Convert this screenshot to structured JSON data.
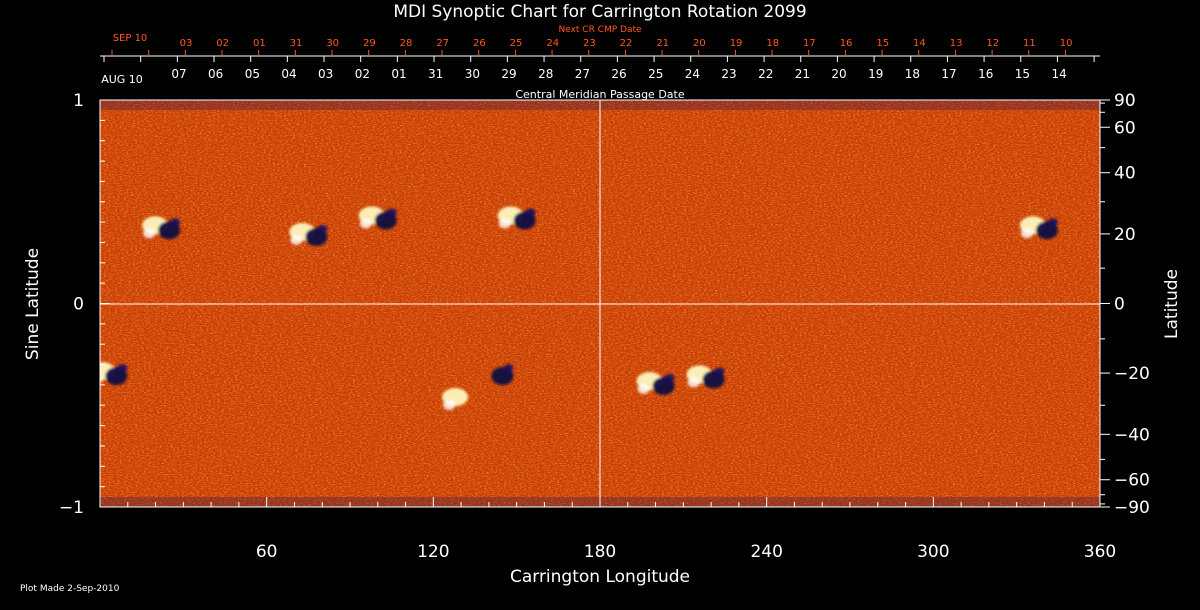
{
  "chart_data": {
    "type": "heatmap",
    "title": "MDI Synoptic Chart for Carrington Rotation 2099",
    "xlabel": "Carrington Longitude",
    "ylabel_left": "Sine Latitude",
    "ylabel_right": "Latitude",
    "xlim": [
      0,
      360
    ],
    "ylim": [
      -1,
      1
    ],
    "x_ticks": [
      60,
      120,
      180,
      240,
      300,
      360
    ],
    "y_left_ticks": [
      {
        "value": 1,
        "label": "1"
      },
      {
        "value": 0,
        "label": "0"
      },
      {
        "value": -1,
        "label": "−1"
      }
    ],
    "y_right_ticks": [
      90,
      60,
      40,
      20,
      0,
      -20,
      -40,
      -60,
      -90
    ],
    "top_axis": {
      "label": "Central Meridian Passage Date",
      "start_label": "AUG 10",
      "dates": [
        "07",
        "06",
        "05",
        "04",
        "03",
        "02",
        "01",
        "31",
        "30",
        "29",
        "28",
        "27",
        "26",
        "25",
        "24",
        "23",
        "22",
        "21",
        "20",
        "19",
        "18",
        "17",
        "16",
        "15",
        "14"
      ]
    },
    "next_cr_axis": {
      "label": "Next CR CMP Date",
      "start_label": "SEP 10",
      "dates": [
        "03",
        "02",
        "01",
        "31",
        "30",
        "29",
        "28",
        "27",
        "26",
        "25",
        "24",
        "23",
        "22",
        "21",
        "20",
        "19",
        "18",
        "17",
        "16",
        "15",
        "14",
        "13",
        "12",
        "11",
        "10"
      ]
    },
    "active_regions": [
      {
        "lon": 22,
        "lat": 22,
        "polarity": "mixed"
      },
      {
        "lon": 75,
        "lat": 20,
        "polarity": "mixed"
      },
      {
        "lon": 100,
        "lat": 25,
        "polarity": "mixed"
      },
      {
        "lon": 150,
        "lat": 25,
        "polarity": "mixed"
      },
      {
        "lon": 338,
        "lat": 22,
        "polarity": "mixed"
      },
      {
        "lon": 3,
        "lat": -20,
        "polarity": "mixed"
      },
      {
        "lon": 142,
        "lat": -20,
        "polarity": "negative"
      },
      {
        "lon": 130,
        "lat": -28,
        "polarity": "positive"
      },
      {
        "lon": 200,
        "lat": -23,
        "polarity": "mixed"
      },
      {
        "lon": 218,
        "lat": -21,
        "polarity": "mixed"
      }
    ],
    "colors": {
      "background": "#cc3a00",
      "positive": "#ffffc8",
      "negative": "#0a0a40",
      "next_cr_text": "#ff5a1e",
      "grid": "#ffffff"
    }
  },
  "footer": {
    "plot_made": "Plot Made  2-Sep-2010"
  }
}
